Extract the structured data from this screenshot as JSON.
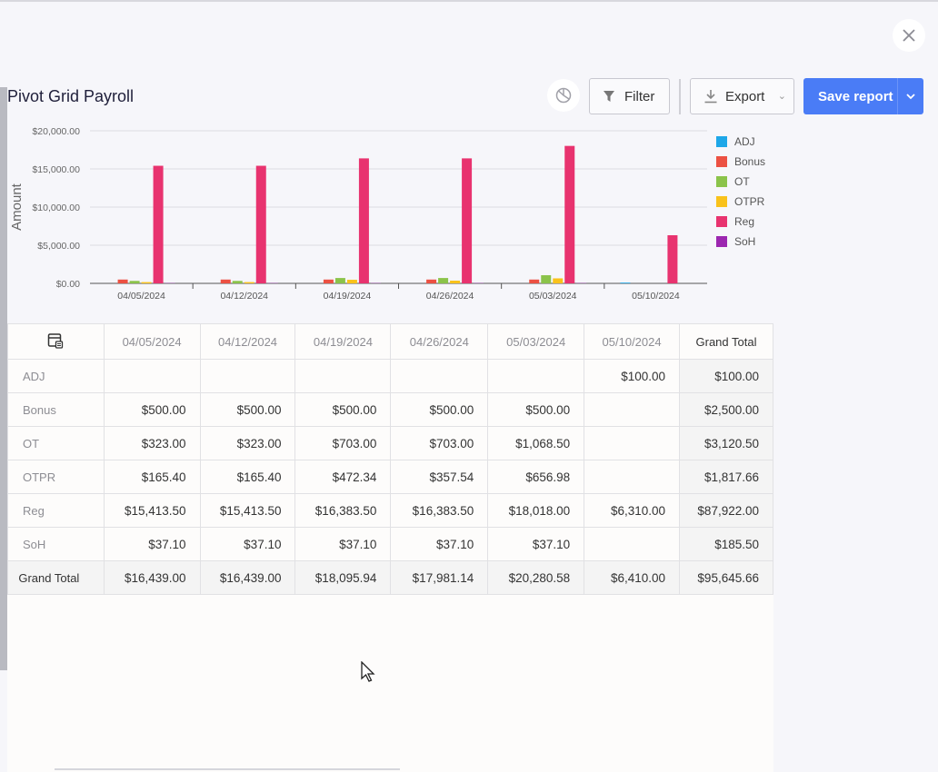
{
  "page": {
    "title": "Pivot Grid Payroll"
  },
  "toolbar": {
    "chart_icon": "pie-chart-icon",
    "filter_label": "Filter",
    "export_label": "Export",
    "save_label": "Save report",
    "close_icon": "close-icon"
  },
  "colors": {
    "accent": "#4a7cf6",
    "ADJ": "#1ea7e8",
    "Bonus": "#ec5143",
    "OT": "#8bc34a",
    "OTPR": "#f9c21b",
    "Reg": "#e8336f",
    "SoH": "#9c27b0"
  },
  "chart_data": {
    "type": "bar",
    "ylabel": "Amount",
    "xlabel": "",
    "ylim": [
      0,
      20000
    ],
    "yticks": [
      "$0.00",
      "$5,000.00",
      "$10,000.00",
      "$15,000.00",
      "$20,000.00"
    ],
    "grid": true,
    "legend_position": "right",
    "categories": [
      "04/05/2024",
      "04/12/2024",
      "04/19/2024",
      "04/26/2024",
      "05/03/2024",
      "05/10/2024"
    ],
    "series": [
      {
        "name": "ADJ",
        "values": [
          0,
          0,
          0,
          0,
          0,
          100
        ]
      },
      {
        "name": "Bonus",
        "values": [
          500,
          500,
          500,
          500,
          500,
          0
        ]
      },
      {
        "name": "OT",
        "values": [
          323,
          323,
          703,
          703,
          1068.5,
          0
        ]
      },
      {
        "name": "OTPR",
        "values": [
          165.4,
          165.4,
          472.34,
          357.54,
          656.98,
          0
        ]
      },
      {
        "name": "Reg",
        "values": [
          15413.5,
          15413.5,
          16383.5,
          16383.5,
          18018,
          6310
        ]
      },
      {
        "name": "SoH",
        "values": [
          37.1,
          37.1,
          37.1,
          37.1,
          37.1,
          0
        ]
      }
    ]
  },
  "grid": {
    "corner_icon": "grid-layout-icon",
    "columns": [
      "04/05/2024",
      "04/12/2024",
      "04/19/2024",
      "04/26/2024",
      "05/03/2024",
      "05/10/2024",
      "Grand Total"
    ],
    "rows": [
      {
        "label": "ADJ",
        "cells": [
          "",
          "",
          "",
          "",
          "",
          "$100.00",
          "$100.00"
        ]
      },
      {
        "label": "Bonus",
        "cells": [
          "$500.00",
          "$500.00",
          "$500.00",
          "$500.00",
          "$500.00",
          "",
          "$2,500.00"
        ]
      },
      {
        "label": "OT",
        "cells": [
          "$323.00",
          "$323.00",
          "$703.00",
          "$703.00",
          "$1,068.50",
          "",
          "$3,120.50"
        ]
      },
      {
        "label": "OTPR",
        "cells": [
          "$165.40",
          "$165.40",
          "$472.34",
          "$357.54",
          "$656.98",
          "",
          "$1,817.66"
        ]
      },
      {
        "label": "Reg",
        "cells": [
          "$15,413.50",
          "$15,413.50",
          "$16,383.50",
          "$16,383.50",
          "$18,018.00",
          "$6,310.00",
          "$87,922.00"
        ]
      },
      {
        "label": "SoH",
        "cells": [
          "$37.10",
          "$37.10",
          "$37.10",
          "$37.10",
          "$37.10",
          "",
          "$185.50"
        ]
      }
    ],
    "total": {
      "label": "Grand Total",
      "cells": [
        "$16,439.00",
        "$16,439.00",
        "$18,095.94",
        "$17,981.14",
        "$20,280.58",
        "$6,410.00",
        "$95,645.66"
      ]
    }
  }
}
